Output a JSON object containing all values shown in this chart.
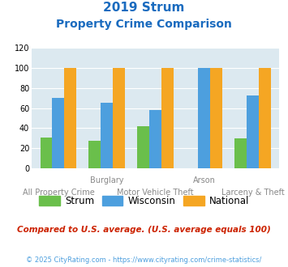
{
  "title_line1": "2019 Strum",
  "title_line2": "Property Crime Comparison",
  "categories": [
    "All Property Crime",
    "Burglary",
    "Motor Vehicle Theft",
    "Arson",
    "Larceny & Theft"
  ],
  "x_labels_top": [
    "",
    "Burglary",
    "",
    "Arson",
    ""
  ],
  "x_labels_bottom": [
    "All Property Crime",
    "",
    "Motor Vehicle Theft",
    "",
    "Larceny & Theft"
  ],
  "strum": [
    31,
    27,
    42,
    0,
    30
  ],
  "wisconsin": [
    70,
    65,
    58,
    100,
    73
  ],
  "national": [
    100,
    100,
    100,
    100,
    100
  ],
  "strum_color": "#6abf4b",
  "wisconsin_color": "#4d9fde",
  "national_color": "#f5a623",
  "ylim": [
    0,
    120
  ],
  "yticks": [
    0,
    20,
    40,
    60,
    80,
    100,
    120
  ],
  "plot_bg": "#dce9f0",
  "note": "Compared to U.S. average. (U.S. average equals 100)",
  "footer": "© 2025 CityRating.com - https://www.cityrating.com/crime-statistics/",
  "title_color": "#1a6bbf",
  "note_color": "#cc2200",
  "footer_color": "#4d9fde",
  "xlabel_color": "#888888",
  "bar_width": 0.25
}
